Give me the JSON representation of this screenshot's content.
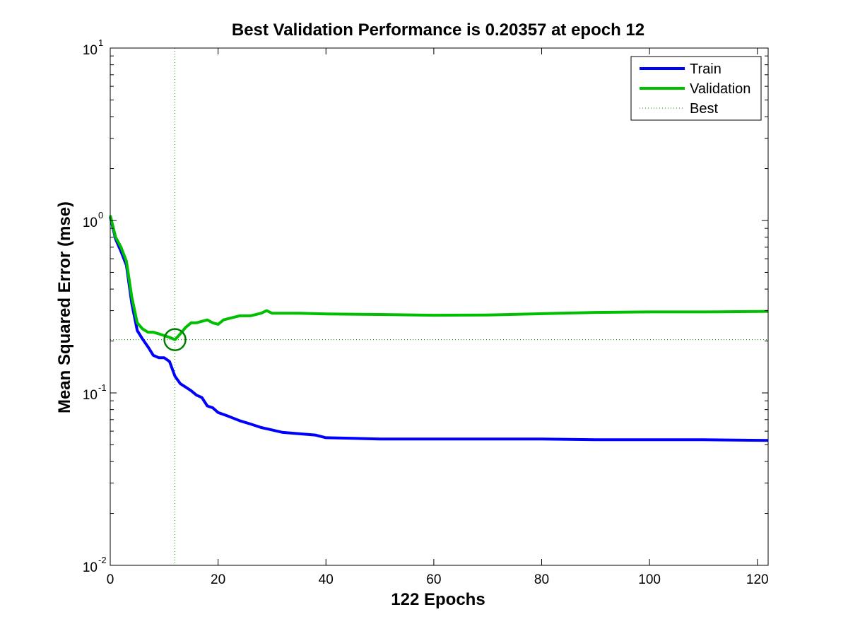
{
  "chart_data": {
    "type": "line",
    "title": "Best Validation Performance is 0.20357 at epoch 12",
    "xlabel": "122 Epochs",
    "ylabel": "Mean Squared Error  (mse)",
    "xlim": [
      0,
      122
    ],
    "ylim": [
      0.01,
      10
    ],
    "yscale": "log",
    "x_ticks": [
      0,
      20,
      40,
      60,
      80,
      100,
      120
    ],
    "y_ticks": [
      {
        "value": 0.01,
        "base": "10",
        "exp": "-2"
      },
      {
        "value": 0.1,
        "base": "10",
        "exp": "-1"
      },
      {
        "value": 1,
        "base": "10",
        "exp": "0"
      },
      {
        "value": 10,
        "base": "10",
        "exp": "1"
      }
    ],
    "grid": false,
    "legend_position": "top-right",
    "best": {
      "epoch": 12,
      "value": 0.20357
    },
    "series": [
      {
        "name": "Train",
        "color": "#0000ff",
        "style": "solid",
        "x": [
          0,
          1,
          2,
          3,
          4,
          5,
          6,
          7,
          8,
          9,
          10,
          11,
          12,
          13,
          14,
          15,
          16,
          17,
          18,
          19,
          20,
          22,
          24,
          26,
          28,
          30,
          32,
          35,
          38,
          40,
          45,
          50,
          60,
          70,
          80,
          90,
          100,
          110,
          122
        ],
        "y": [
          1.05,
          0.78,
          0.66,
          0.55,
          0.33,
          0.23,
          0.205,
          0.185,
          0.165,
          0.16,
          0.16,
          0.152,
          0.125,
          0.113,
          0.108,
          0.103,
          0.097,
          0.094,
          0.084,
          0.082,
          0.077,
          0.073,
          0.069,
          0.066,
          0.063,
          0.061,
          0.059,
          0.058,
          0.057,
          0.055,
          0.0545,
          0.054,
          0.054,
          0.054,
          0.054,
          0.0535,
          0.0535,
          0.0535,
          0.053
        ]
      },
      {
        "name": "Validation",
        "color": "#00bf00",
        "style": "solid",
        "x": [
          0,
          1,
          2,
          3,
          4,
          5,
          6,
          7,
          8,
          9,
          10,
          11,
          12,
          13,
          14,
          15,
          16,
          17,
          18,
          19,
          20,
          21,
          22,
          24,
          26,
          28,
          29,
          30,
          35,
          40,
          50,
          60,
          70,
          80,
          90,
          100,
          110,
          122
        ],
        "y": [
          1.07,
          0.8,
          0.7,
          0.58,
          0.36,
          0.255,
          0.235,
          0.225,
          0.225,
          0.22,
          0.215,
          0.21,
          0.20357,
          0.22,
          0.24,
          0.255,
          0.255,
          0.26,
          0.265,
          0.255,
          0.25,
          0.265,
          0.27,
          0.28,
          0.28,
          0.29,
          0.3,
          0.29,
          0.29,
          0.287,
          0.285,
          0.282,
          0.283,
          0.288,
          0.293,
          0.295,
          0.295,
          0.297
        ]
      },
      {
        "name": "Best",
        "color": "#008000",
        "style": "dotted"
      }
    ]
  }
}
